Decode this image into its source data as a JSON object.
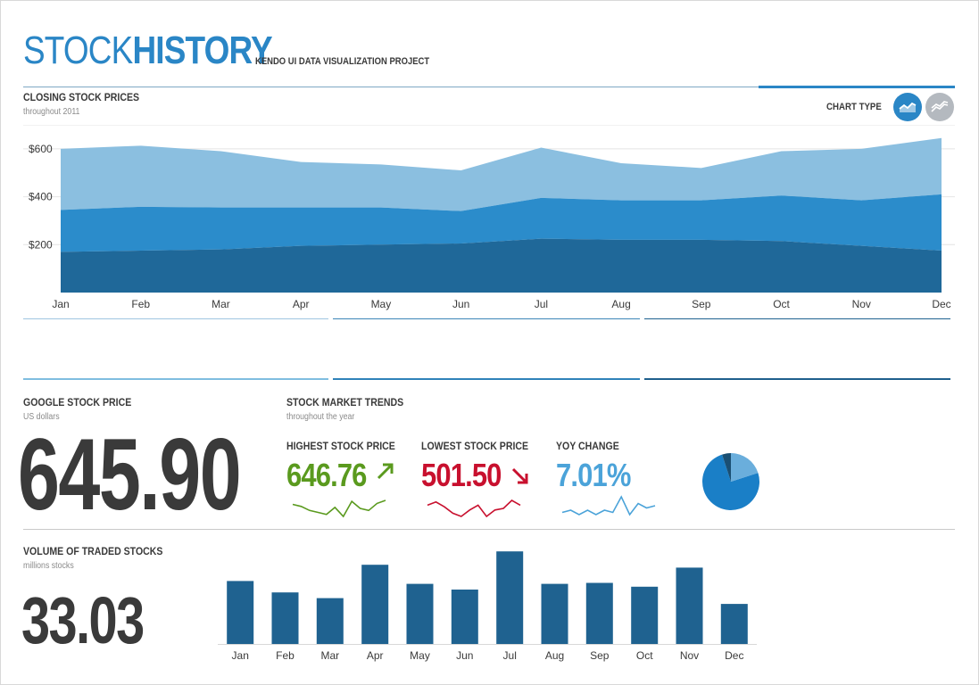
{
  "header": {
    "title_light": "STOCK",
    "title_bold": "HISTORY",
    "subtitle": "KENDO UI DATA VISUALIZATION PROJECT"
  },
  "closing_prices": {
    "title": "CLOSING STOCK PRICES",
    "subtitle": "throughout 2011",
    "chart_type_label": "CHART TYPE",
    "chart_type_icons": [
      "area-chart-icon",
      "line-chart-icon"
    ],
    "active_chart_type": "area"
  },
  "google_price": {
    "title": "GOOGLE STOCK PRICE",
    "subtitle": "US dollars",
    "value": "645.90"
  },
  "trends": {
    "title": "STOCK MARKET TRENDS",
    "subtitle": "throughout the year",
    "highest": {
      "label": "HIGHEST STOCK PRICE",
      "value": "646.76",
      "color": "#5a9a1e",
      "arrow": "arrow-up-right-icon"
    },
    "lowest": {
      "label": "LOWEST STOCK PRICE",
      "value": "501.50",
      "color": "#c8102e",
      "arrow": "arrow-down-right-icon"
    },
    "yoy": {
      "label": "YOY CHANGE",
      "value": "7.01%",
      "color": "#4ba3d9"
    }
  },
  "volume": {
    "title": "VOLUME OF TRADED STOCKS",
    "subtitle": "millions stocks",
    "value": "33.03"
  },
  "colors": {
    "accent": "#2a86c6",
    "area_light": "#8bbfe0",
    "area_mid": "#2b8ccb",
    "area_dark": "#1f6899",
    "bar": "#1f6290",
    "pie_main": "#1a7fc7",
    "pie_light": "#6aaedc",
    "pie_dark": "#1a4f73"
  },
  "chart_data": [
    {
      "type": "area",
      "categories": [
        "Jan",
        "Feb",
        "Mar",
        "Apr",
        "May",
        "Jun",
        "Jul",
        "Aug",
        "Sep",
        "Oct",
        "Nov",
        "Dec"
      ],
      "series": [
        {
          "values": [
            170,
            175,
            180,
            195,
            200,
            205,
            225,
            220,
            220,
            215,
            195,
            175
          ]
        },
        {
          "values": [
            175,
            183,
            175,
            160,
            155,
            135,
            170,
            165,
            165,
            190,
            190,
            235
          ]
        },
        {
          "values": [
            255,
            255,
            235,
            190,
            180,
            170,
            210,
            155,
            135,
            185,
            215,
            235
          ]
        }
      ],
      "yticks": [
        200,
        400,
        600
      ],
      "ytick_labels": [
        "$200",
        "$400",
        "$600"
      ],
      "ylim": [
        0,
        700
      ],
      "stacked": true
    },
    {
      "type": "line",
      "categories": [
        "Jan",
        "Feb",
        "Mar",
        "Apr",
        "May",
        "Jun",
        "Jul",
        "Aug",
        "Sep",
        "Oct",
        "Nov",
        "Dec"
      ],
      "values": [
        600,
        598,
        594,
        592,
        590,
        597,
        588,
        603,
        596,
        594,
        601,
        604
      ],
      "color": "#5a9a1e"
    },
    {
      "type": "line",
      "categories": [
        "Jan",
        "Feb",
        "Mar",
        "Apr",
        "May",
        "Jun",
        "Jul",
        "Aug",
        "Sep",
        "Oct",
        "Nov",
        "Dec"
      ],
      "values": [
        531,
        533,
        530,
        526,
        524,
        528,
        531,
        524,
        528,
        529,
        534,
        531
      ],
      "color": "#c8102e"
    },
    {
      "type": "line",
      "categories": [
        "Jan",
        "Feb",
        "Mar",
        "Apr",
        "May",
        "Jun",
        "Jul",
        "Aug",
        "Sep",
        "Oct",
        "Nov",
        "Dec"
      ],
      "values": [
        2,
        3,
        1,
        3,
        1,
        3,
        2,
        9,
        1,
        6,
        4,
        5
      ],
      "color": "#4ba3d9"
    },
    {
      "type": "pie",
      "values": [
        75,
        20,
        5
      ],
      "colors": [
        "#1a7fc7",
        "#6aaedc",
        "#1a4f73"
      ]
    },
    {
      "type": "bar",
      "categories": [
        "Jan",
        "Feb",
        "Mar",
        "Apr",
        "May",
        "Jun",
        "Jul",
        "Aug",
        "Sep",
        "Oct",
        "Nov",
        "Dec"
      ],
      "values": [
        66,
        54,
        48,
        83,
        63,
        57,
        97,
        63,
        64,
        60,
        80,
        42
      ],
      "ylim": [
        0,
        100
      ]
    }
  ]
}
